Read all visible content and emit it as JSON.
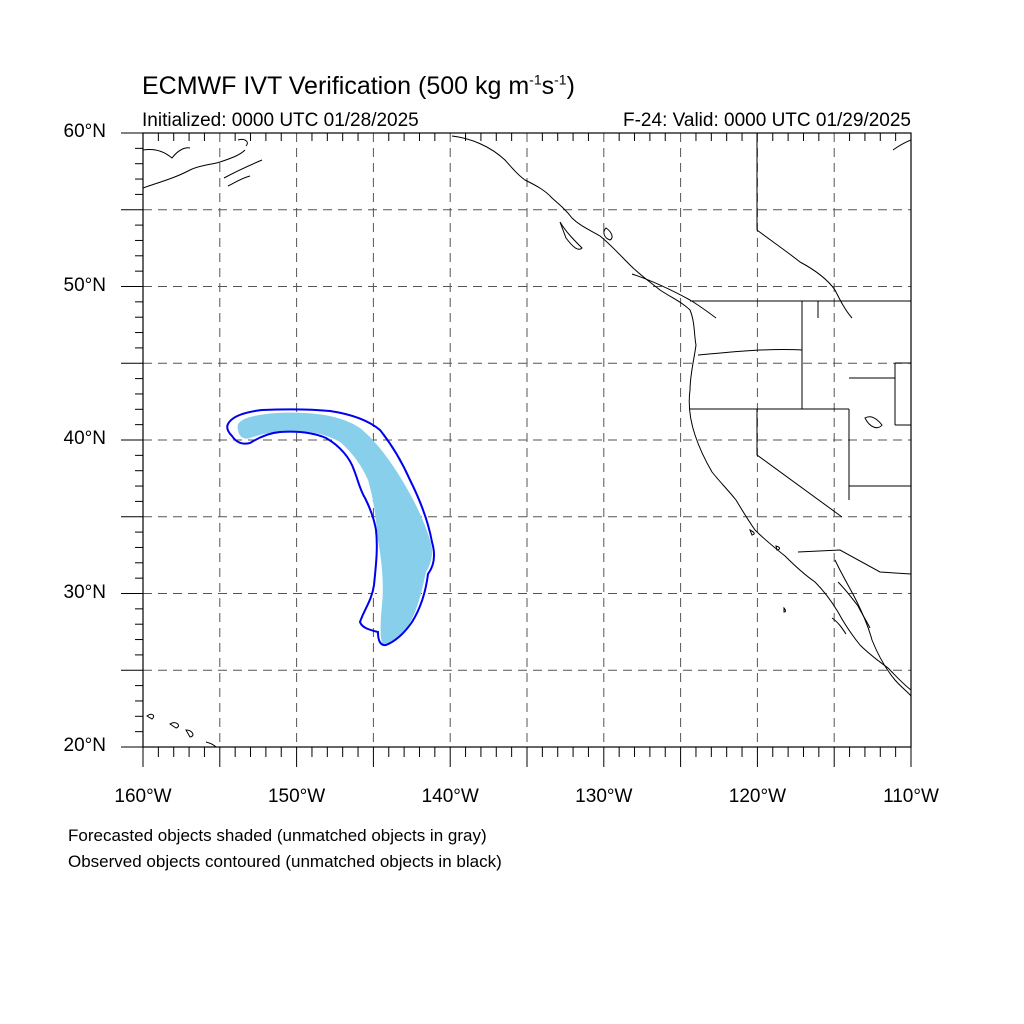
{
  "header": {
    "title_main": "ECMWF IVT Verification (500 kg m",
    "title_exp1": "-1",
    "title_mid": "s",
    "title_exp2": "-1",
    "title_end": ")",
    "initialized": "Initialized: 0000 UTC 01/28/2025",
    "valid": "F-24: Valid: 0000 UTC 01/29/2025"
  },
  "map": {
    "lat_range": [
      20,
      60
    ],
    "lon_range": [
      -160,
      -110
    ],
    "grid": "dashed every 5 degrees",
    "lat_labels": [
      {
        "value": 60,
        "text": "60°N"
      },
      {
        "value": 50,
        "text": "50°N"
      },
      {
        "value": 40,
        "text": "40°N"
      },
      {
        "value": 30,
        "text": "30°N"
      },
      {
        "value": 20,
        "text": "20°N"
      }
    ],
    "lon_labels": [
      {
        "value": -160,
        "text": "160°W"
      },
      {
        "value": -150,
        "text": "150°W"
      },
      {
        "value": -140,
        "text": "140°W"
      },
      {
        "value": -130,
        "text": "130°W"
      },
      {
        "value": -120,
        "text": "120°W"
      },
      {
        "value": -110,
        "text": "110°W"
      }
    ],
    "colors": {
      "forecast_fill": "#87cfeb",
      "observed_contour": "#0000ee",
      "coastline": "#000000",
      "grid": "#555555"
    }
  },
  "legend": {
    "line1": "Forecasted objects shaded (unmatched objects in gray)",
    "line2": "Observed objects contoured (unmatched objects in black)"
  }
}
